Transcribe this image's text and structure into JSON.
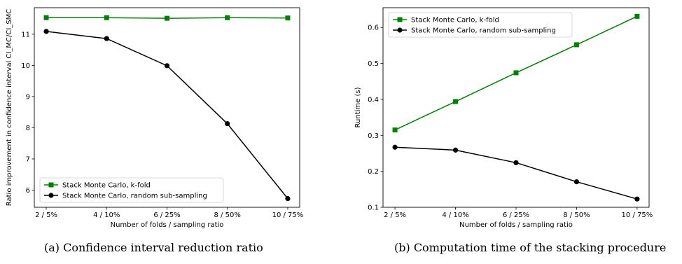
{
  "chart_data": [
    {
      "type": "line",
      "categories": [
        "2 / 5%",
        "4 / 10%",
        "6 / 25%",
        "8 / 50%",
        "10 / 75%"
      ],
      "xlabel": "Number of folds / sampling ratio",
      "ylabel": "Ratio improvement in confidence interval CI_MC/CI_SMC",
      "ylim": [
        5.45,
        11.85
      ],
      "yticks": [
        6,
        7,
        8,
        9,
        10,
        11
      ],
      "grid": false,
      "legend_position": "lower-left",
      "series": [
        {
          "name": "Stack Monte Carlo, k-fold",
          "color": "#008000",
          "marker": "square",
          "values": [
            11.53,
            11.53,
            11.51,
            11.53,
            11.52
          ]
        },
        {
          "name": "Stack Monte Carlo, random sub-sampling",
          "color": "#000000",
          "marker": "circle",
          "values": [
            11.09,
            10.86,
            9.99,
            8.13,
            5.73
          ]
        }
      ]
    },
    {
      "type": "line",
      "categories": [
        "2 / 5%",
        "4 / 10%",
        "6 / 25%",
        "8 / 50%",
        "10 / 75%"
      ],
      "xlabel": "Number of folds / sampling ratio",
      "ylabel": "Runtime (s)",
      "ylim": [
        0.1,
        0.655
      ],
      "yticks": [
        0.1,
        0.2,
        0.3,
        0.4,
        0.5,
        0.6
      ],
      "grid": false,
      "legend_position": "upper-left",
      "series": [
        {
          "name": "Stack Monte Carlo, k-fold",
          "color": "#008000",
          "marker": "square",
          "values": [
            0.315,
            0.394,
            0.474,
            0.552,
            0.631
          ]
        },
        {
          "name": "Stack Monte Carlo, random sub-sampling",
          "color": "#000000",
          "marker": "circle",
          "values": [
            0.267,
            0.259,
            0.224,
            0.171,
            0.123
          ]
        }
      ]
    }
  ],
  "captions": [
    "(a)  Confidence interval reduction ratio",
    "(b)  Computation time of the stacking procedure"
  ]
}
